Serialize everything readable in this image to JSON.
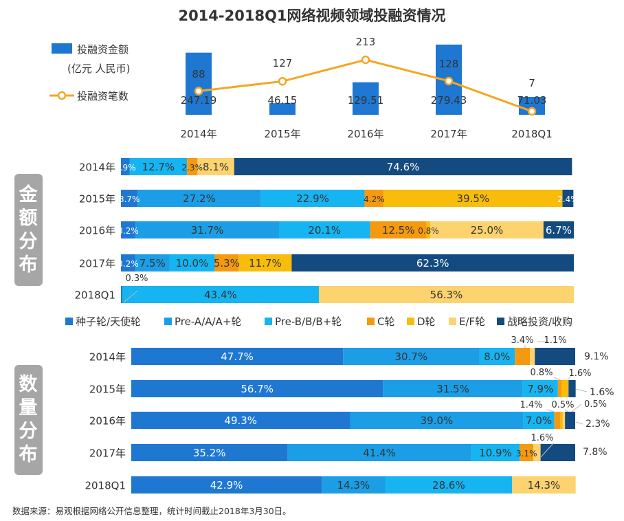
{
  "title": "2014-2018Q1网络视频领域投融资情况",
  "source": "数据来源：易观根据网络公开信息整理，统计时间截止2018年3月30日。",
  "side_labels": {
    "amount": "金额分布",
    "count": "数量分布"
  },
  "colors": {
    "bar": "#1e78d2",
    "line": "#f5a623",
    "segments": [
      "#1e78d2",
      "#1b9ee6",
      "#16b4f0",
      "#f59a0f",
      "#f7bd0a",
      "#fcd36e",
      "#134a80"
    ],
    "side_label_bg": "#a6a6a6",
    "text_dark": "#333333",
    "text_light": "#ffffff"
  },
  "legend_labels": [
    "种子轮/天使轮",
    "Pre-A/A/A+轮",
    "Pre-B/B/B+轮",
    "C轮",
    "D轮",
    "E/F轮",
    "战略投资/收购"
  ],
  "chart_data": [
    {
      "type": "bar+line",
      "categories": [
        "2014年",
        "2015年",
        "2016年",
        "2017年",
        "2018Q1"
      ],
      "series": [
        {
          "name": "投融资金额",
          "unit_line": "(亿元 人民币)",
          "type": "bar",
          "values": [
            247.19,
            46.15,
            129.51,
            279.43,
            71.03
          ],
          "labels": [
            "247.19",
            "46.15",
            "129.51",
            "279.43",
            "71.03"
          ]
        },
        {
          "name": "投融资笔数",
          "type": "line",
          "values": [
            88,
            127,
            213,
            128,
            7
          ],
          "labels": [
            "88",
            "127",
            "213",
            "128",
            "7"
          ]
        }
      ]
    },
    {
      "type": "bar",
      "stacked": "100%",
      "orientation": "horizontal",
      "categories": [
        "2014年",
        "2015年",
        "2016年",
        "2017年",
        "2018Q1"
      ],
      "series": [
        {
          "name": "种子轮/天使轮",
          "values": [
            1.9,
            3.7,
            3.2,
            3.2,
            0.3
          ],
          "labels": [
            "1.9%",
            "3.7%",
            "3.2%",
            "3.2%",
            "0.3%"
          ]
        },
        {
          "name": "Pre-A/A/A+轮",
          "values": [
            0,
            27.2,
            31.7,
            7.5,
            0
          ],
          "labels": [
            "",
            "27.2%",
            "31.7%",
            "7.5%",
            ""
          ]
        },
        {
          "name": "Pre-B/B/B+轮",
          "values": [
            12.7,
            22.9,
            20.1,
            10.0,
            43.4
          ],
          "labels": [
            "12.7%",
            "22.9%",
            "20.1%",
            "10.0%",
            "43.4%"
          ]
        },
        {
          "name": "C轮",
          "values": [
            2.3,
            4.2,
            12.5,
            5.3,
            0
          ],
          "labels": [
            "2.3%",
            "4.2%",
            "12.5%",
            "5.3%",
            ""
          ]
        },
        {
          "name": "D轮",
          "values": [
            0,
            39.5,
            0.8,
            11.7,
            0
          ],
          "labels": [
            "",
            "39.5%",
            "0.8%",
            "11.7%",
            ""
          ]
        },
        {
          "name": "E/F轮",
          "values": [
            8.1,
            0,
            25.0,
            0,
            56.3
          ],
          "labels": [
            "8.1%",
            "",
            "25.0%",
            "",
            "56.3%"
          ]
        },
        {
          "name": "战略投资/收购",
          "values": [
            74.6,
            2.4,
            6.7,
            62.3,
            0
          ],
          "labels": [
            "74.6%",
            "2.4%",
            "6.7%",
            "62.3%",
            ""
          ]
        }
      ]
    },
    {
      "type": "bar",
      "stacked": "100%",
      "orientation": "horizontal",
      "categories": [
        "2014年",
        "2015年",
        "2016年",
        "2017年",
        "2018Q1"
      ],
      "series": [
        {
          "name": "种子轮/天使轮",
          "values": [
            47.7,
            56.7,
            49.3,
            35.2,
            42.9
          ],
          "labels": [
            "47.7%",
            "56.7%",
            "49.3%",
            "35.2%",
            "42.9%"
          ]
        },
        {
          "name": "Pre-A/A/A+轮",
          "values": [
            30.7,
            31.5,
            39.0,
            41.4,
            14.3
          ],
          "labels": [
            "30.7%",
            "31.5%",
            "39.0%",
            "41.4%",
            "14.3%"
          ]
        },
        {
          "name": "Pre-B/B/B+轮",
          "values": [
            8.0,
            7.9,
            7.0,
            10.9,
            28.6
          ],
          "labels": [
            "8.0%",
            "7.9%",
            "7.0%",
            "10.9%",
            "28.6%"
          ]
        },
        {
          "name": "C轮",
          "values": [
            3.4,
            0.8,
            1.4,
            3.1,
            0
          ],
          "labels": [
            "3.4%",
            "0.8%",
            "1.4%",
            "3.1%",
            ""
          ]
        },
        {
          "name": "D轮",
          "values": [
            0,
            1.6,
            0.5,
            0,
            0
          ],
          "labels": [
            "",
            "1.6%",
            "0.5%",
            "",
            ""
          ]
        },
        {
          "name": "E/F轮",
          "values": [
            1.1,
            0,
            0.5,
            1.6,
            14.3
          ],
          "labels": [
            "1.1%",
            "",
            "0.5%",
            "1.6%",
            "14.3%"
          ]
        },
        {
          "name": "战略投资/收购",
          "values": [
            9.1,
            1.6,
            2.3,
            7.8,
            0
          ],
          "labels": [
            "9.1%",
            "1.6%",
            "2.3%",
            "7.8%",
            ""
          ]
        }
      ]
    }
  ]
}
